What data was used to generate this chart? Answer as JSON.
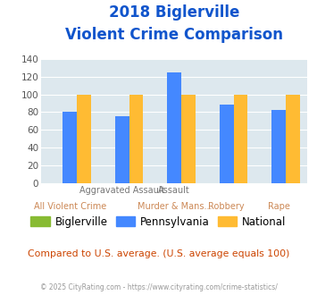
{
  "title_line1": "2018 Biglerville",
  "title_line2": "Violent Crime Comparison",
  "biglerville": [
    0,
    0,
    0,
    0,
    0
  ],
  "pennsylvania": [
    80,
    75,
    125,
    88,
    82
  ],
  "national": [
    100,
    100,
    100,
    100,
    100
  ],
  "bar_color_biglerville": "#88bb33",
  "bar_color_pennsylvania": "#4488ff",
  "bar_color_national": "#ffbb33",
  "ylim": [
    0,
    140
  ],
  "yticks": [
    0,
    20,
    40,
    60,
    80,
    100,
    120,
    140
  ],
  "plot_bg": "#dde8ee",
  "title_color": "#1155cc",
  "xlabel_color_row1": "#888888",
  "xlabel_color_row2": "#cc8855",
  "row1_labels": [
    "",
    "Aggravated Assault",
    "Assault",
    "",
    ""
  ],
  "row2_labels": [
    "All Violent Crime",
    "",
    "Murder & Mans...",
    "Robbery",
    "Rape"
  ],
  "legend_labels": [
    "Biglerville",
    "Pennsylvania",
    "National"
  ],
  "footer_text": "Compared to U.S. average. (U.S. average equals 100)",
  "footer_color": "#cc4400",
  "copyright_text": "© 2025 CityRating.com - https://www.cityrating.com/crime-statistics/",
  "copyright_color": "#999999"
}
